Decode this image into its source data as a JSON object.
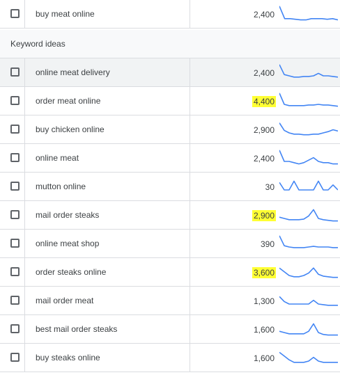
{
  "top_row": {
    "keyword": "buy meat online",
    "volume": "2,400",
    "highlighted": false,
    "trend": [
      28,
      8,
      8,
      7,
      6,
      6,
      8,
      8,
      8,
      7,
      8,
      6
    ]
  },
  "section": {
    "title": "Keyword ideas"
  },
  "rows": [
    {
      "keyword": "online meat delivery",
      "volume": "2,400",
      "highlighted": false,
      "trend": [
        28,
        12,
        10,
        8,
        8,
        9,
        9,
        10,
        14,
        10,
        10,
        9,
        8
      ]
    },
    {
      "keyword": "order meat online",
      "volume": "4,400",
      "highlighted": true,
      "trend": [
        28,
        10,
        8,
        8,
        8,
        8,
        9,
        9,
        10,
        9,
        9,
        8,
        7
      ]
    },
    {
      "keyword": "buy chicken online",
      "volume": "2,900",
      "highlighted": false,
      "trend": [
        26,
        14,
        10,
        8,
        8,
        7,
        7,
        8,
        8,
        10,
        12,
        15,
        13
      ]
    },
    {
      "keyword": "online meat",
      "volume": "2,400",
      "highlighted": false,
      "trend": [
        28,
        10,
        10,
        8,
        6,
        8,
        12,
        16,
        10,
        8,
        8,
        6,
        6
      ]
    },
    {
      "keyword": "mutton online",
      "volume": "30",
      "highlighted": false,
      "trend": [
        22,
        10,
        10,
        24,
        10,
        10,
        10,
        10,
        24,
        10,
        10,
        18,
        10
      ]
    },
    {
      "keyword": "mail order steaks",
      "volume": "2,900",
      "highlighted": true,
      "trend": [
        12,
        10,
        8,
        8,
        8,
        9,
        14,
        24,
        10,
        8,
        7,
        6,
        6
      ]
    },
    {
      "keyword": "online meat shop",
      "volume": "390",
      "highlighted": false,
      "trend": [
        28,
        12,
        10,
        9,
        9,
        9,
        10,
        11,
        10,
        10,
        10,
        9,
        9
      ]
    },
    {
      "keyword": "order steaks online",
      "volume": "3,600",
      "highlighted": true,
      "trend": [
        22,
        16,
        10,
        8,
        8,
        10,
        14,
        22,
        12,
        9,
        8,
        7,
        7
      ]
    },
    {
      "keyword": "mail order meat",
      "volume": "1,300",
      "highlighted": false,
      "trend": [
        22,
        14,
        10,
        10,
        10,
        10,
        10,
        16,
        10,
        9,
        8,
        8,
        8
      ]
    },
    {
      "keyword": "best mail order steaks",
      "volume": "1,600",
      "highlighted": false,
      "trend": [
        12,
        10,
        8,
        8,
        8,
        8,
        12,
        24,
        10,
        7,
        6,
        6,
        6
      ]
    },
    {
      "keyword": "buy steaks online",
      "volume": "1,600",
      "highlighted": false,
      "trend": [
        24,
        18,
        12,
        8,
        8,
        8,
        10,
        16,
        10,
        8,
        8,
        8,
        8
      ]
    }
  ],
  "colors": {
    "highlight": "#ffff33",
    "sparkline": "#4285f4"
  }
}
